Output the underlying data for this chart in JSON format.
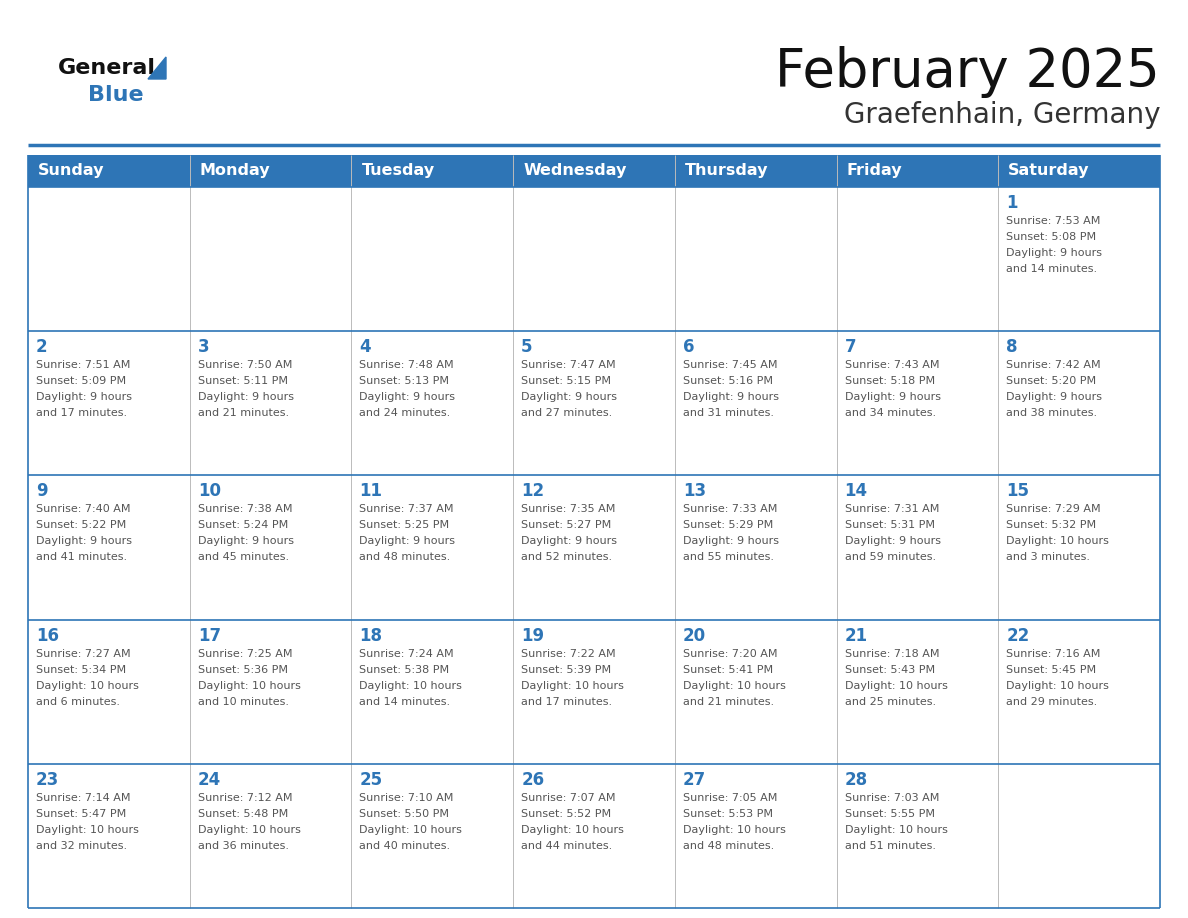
{
  "title": "February 2025",
  "subtitle": "Graefenhain, Germany",
  "days_of_week": [
    "Sunday",
    "Monday",
    "Tuesday",
    "Wednesday",
    "Thursday",
    "Friday",
    "Saturday"
  ],
  "header_bg": "#2E75B6",
  "header_text_color": "#FFFFFF",
  "cell_bg_light": "#FFFFFF",
  "row_separator_color": "#2E75B6",
  "day_number_color": "#2E75B6",
  "cell_text_color": "#555555",
  "title_color": "#111111",
  "subtitle_color": "#333333",
  "logo_general_color": "#111111",
  "logo_blue_color": "#2E75B6",
  "outer_border_color": "#2E75B6",
  "col_divider_color": "#BBBBBB",
  "weeks": [
    {
      "days": [
        {
          "date": "",
          "info": ""
        },
        {
          "date": "",
          "info": ""
        },
        {
          "date": "",
          "info": ""
        },
        {
          "date": "",
          "info": ""
        },
        {
          "date": "",
          "info": ""
        },
        {
          "date": "",
          "info": ""
        },
        {
          "date": "1",
          "info": "Sunrise: 7:53 AM\nSunset: 5:08 PM\nDaylight: 9 hours\nand 14 minutes."
        }
      ]
    },
    {
      "days": [
        {
          "date": "2",
          "info": "Sunrise: 7:51 AM\nSunset: 5:09 PM\nDaylight: 9 hours\nand 17 minutes."
        },
        {
          "date": "3",
          "info": "Sunrise: 7:50 AM\nSunset: 5:11 PM\nDaylight: 9 hours\nand 21 minutes."
        },
        {
          "date": "4",
          "info": "Sunrise: 7:48 AM\nSunset: 5:13 PM\nDaylight: 9 hours\nand 24 minutes."
        },
        {
          "date": "5",
          "info": "Sunrise: 7:47 AM\nSunset: 5:15 PM\nDaylight: 9 hours\nand 27 minutes."
        },
        {
          "date": "6",
          "info": "Sunrise: 7:45 AM\nSunset: 5:16 PM\nDaylight: 9 hours\nand 31 minutes."
        },
        {
          "date": "7",
          "info": "Sunrise: 7:43 AM\nSunset: 5:18 PM\nDaylight: 9 hours\nand 34 minutes."
        },
        {
          "date": "8",
          "info": "Sunrise: 7:42 AM\nSunset: 5:20 PM\nDaylight: 9 hours\nand 38 minutes."
        }
      ]
    },
    {
      "days": [
        {
          "date": "9",
          "info": "Sunrise: 7:40 AM\nSunset: 5:22 PM\nDaylight: 9 hours\nand 41 minutes."
        },
        {
          "date": "10",
          "info": "Sunrise: 7:38 AM\nSunset: 5:24 PM\nDaylight: 9 hours\nand 45 minutes."
        },
        {
          "date": "11",
          "info": "Sunrise: 7:37 AM\nSunset: 5:25 PM\nDaylight: 9 hours\nand 48 minutes."
        },
        {
          "date": "12",
          "info": "Sunrise: 7:35 AM\nSunset: 5:27 PM\nDaylight: 9 hours\nand 52 minutes."
        },
        {
          "date": "13",
          "info": "Sunrise: 7:33 AM\nSunset: 5:29 PM\nDaylight: 9 hours\nand 55 minutes."
        },
        {
          "date": "14",
          "info": "Sunrise: 7:31 AM\nSunset: 5:31 PM\nDaylight: 9 hours\nand 59 minutes."
        },
        {
          "date": "15",
          "info": "Sunrise: 7:29 AM\nSunset: 5:32 PM\nDaylight: 10 hours\nand 3 minutes."
        }
      ]
    },
    {
      "days": [
        {
          "date": "16",
          "info": "Sunrise: 7:27 AM\nSunset: 5:34 PM\nDaylight: 10 hours\nand 6 minutes."
        },
        {
          "date": "17",
          "info": "Sunrise: 7:25 AM\nSunset: 5:36 PM\nDaylight: 10 hours\nand 10 minutes."
        },
        {
          "date": "18",
          "info": "Sunrise: 7:24 AM\nSunset: 5:38 PM\nDaylight: 10 hours\nand 14 minutes."
        },
        {
          "date": "19",
          "info": "Sunrise: 7:22 AM\nSunset: 5:39 PM\nDaylight: 10 hours\nand 17 minutes."
        },
        {
          "date": "20",
          "info": "Sunrise: 7:20 AM\nSunset: 5:41 PM\nDaylight: 10 hours\nand 21 minutes."
        },
        {
          "date": "21",
          "info": "Sunrise: 7:18 AM\nSunset: 5:43 PM\nDaylight: 10 hours\nand 25 minutes."
        },
        {
          "date": "22",
          "info": "Sunrise: 7:16 AM\nSunset: 5:45 PM\nDaylight: 10 hours\nand 29 minutes."
        }
      ]
    },
    {
      "days": [
        {
          "date": "23",
          "info": "Sunrise: 7:14 AM\nSunset: 5:47 PM\nDaylight: 10 hours\nand 32 minutes."
        },
        {
          "date": "24",
          "info": "Sunrise: 7:12 AM\nSunset: 5:48 PM\nDaylight: 10 hours\nand 36 minutes."
        },
        {
          "date": "25",
          "info": "Sunrise: 7:10 AM\nSunset: 5:50 PM\nDaylight: 10 hours\nand 40 minutes."
        },
        {
          "date": "26",
          "info": "Sunrise: 7:07 AM\nSunset: 5:52 PM\nDaylight: 10 hours\nand 44 minutes."
        },
        {
          "date": "27",
          "info": "Sunrise: 7:05 AM\nSunset: 5:53 PM\nDaylight: 10 hours\nand 48 minutes."
        },
        {
          "date": "28",
          "info": "Sunrise: 7:03 AM\nSunset: 5:55 PM\nDaylight: 10 hours\nand 51 minutes."
        },
        {
          "date": "",
          "info": ""
        }
      ]
    }
  ]
}
